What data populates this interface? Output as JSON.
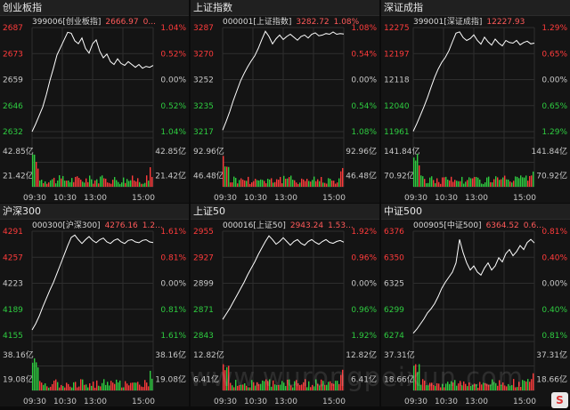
{
  "panels": [
    {
      "title": "创业板指",
      "code": "399006[创业板指]",
      "price": "2666.97",
      "chg": "0...",
      "y_left": [
        "2687",
        "2673",
        "2659",
        "2646",
        "2632"
      ],
      "y_right": [
        "1.04%",
        "0.52%",
        "0.00%",
        "0.52%",
        "1.04%"
      ],
      "vol_left": [
        "42.85亿",
        "21.42亿"
      ],
      "vol_right": [
        "42.85亿",
        "21.42亿"
      ],
      "times": [
        "09:30",
        "10:30",
        "13:00",
        "15:00"
      ],
      "price_series": [
        2632.0,
        2636.0,
        2640.5,
        2645.0,
        2651.5,
        2659.0,
        2665.5,
        2672.5,
        2676.5,
        2680.5,
        2684.5,
        2684.0,
        2680.0,
        2678.5,
        2681.5,
        2676.0,
        2673.5,
        2678.5,
        2680.5,
        2674.5,
        2671.0,
        2673.0,
        2669.0,
        2667.5,
        2670.5,
        2668.0,
        2667.0,
        2669.0,
        2667.5,
        2666.0,
        2667.5,
        2665.5,
        2666.5,
        2666.0,
        2666.97
      ],
      "price_range": [
        2632,
        2687
      ],
      "vol_max": 42.85
    },
    {
      "title": "上证指数",
      "code": "000001[上证指数]",
      "price": "3282.72",
      "chg": "1.08%",
      "y_left": [
        "3287",
        "3270",
        "3252",
        "3235",
        "3217"
      ],
      "y_right": [
        "1.08%",
        "0.54%",
        "0.00%",
        "0.54%",
        "1.08%"
      ],
      "vol_left": [
        "92.96亿",
        "46.48亿"
      ],
      "vol_right": [
        "92.96亿",
        "46.48亿"
      ],
      "times": [
        "09:30",
        "10:30",
        "13:00",
        "15:00"
      ],
      "price_series": [
        3218.0,
        3224.0,
        3230.5,
        3238.0,
        3244.5,
        3251.0,
        3256.0,
        3260.5,
        3264.5,
        3268.0,
        3273.0,
        3279.0,
        3284.5,
        3281.0,
        3276.0,
        3279.5,
        3282.0,
        3279.0,
        3281.0,
        3282.5,
        3280.5,
        3278.5,
        3281.0,
        3282.0,
        3280.0,
        3282.5,
        3283.5,
        3281.5,
        3282.0,
        3283.0,
        3282.5,
        3284.0,
        3282.5,
        3283.0,
        3282.72
      ],
      "price_range": [
        3217,
        3287
      ],
      "vol_max": 92.96
    },
    {
      "title": "深证成指",
      "code": "399001[深证成指]",
      "price": "12227.93",
      "chg": "",
      "y_left": [
        "12275",
        "12197",
        "12118",
        "12040",
        "11961"
      ],
      "y_right": [
        "1.29%",
        "0.65%",
        "0.00%",
        "0.65%",
        "1.29%"
      ],
      "vol_left": [
        "141.84亿",
        "70.92亿"
      ],
      "vol_right": [
        "141.84亿",
        "70.92亿"
      ],
      "times": [
        "09:30",
        "10:30",
        "13:00",
        "15:00"
      ],
      "price_series": [
        11962.0,
        11985.0,
        12010.0,
        12036.0,
        12064.0,
        12095.0,
        12125.0,
        12150.0,
        12170.0,
        12185.0,
        12205.0,
        12232.0,
        12258.0,
        12262.0,
        12245.0,
        12236.0,
        12242.0,
        12253.0,
        12236.0,
        12225.0,
        12246.0,
        12232.0,
        12222.0,
        12240.0,
        12228.0,
        12220.0,
        12236.0,
        12230.0,
        12228.0,
        12236.0,
        12223.0,
        12230.0,
        12234.0,
        12226.0,
        12227.93
      ],
      "price_range": [
        11961,
        12275
      ],
      "vol_max": 141.84
    },
    {
      "title": "沪深300",
      "code": "000300[沪深300]",
      "price": "4276.16",
      "chg": "1.2...",
      "y_left": [
        "4291",
        "4257",
        "4223",
        "4189",
        "4155"
      ],
      "y_right": [
        "1.61%",
        "0.81%",
        "0.00%",
        "0.81%",
        "1.61%"
      ],
      "vol_left": [
        "38.16亿",
        "19.08亿"
      ],
      "vol_right": [
        "38.16亿",
        "19.08亿"
      ],
      "times": [
        "09:30",
        "10:30",
        "13:00",
        "15:00"
      ],
      "price_series": [
        4162.0,
        4170.0,
        4180.0,
        4192.0,
        4203.0,
        4214.0,
        4224.0,
        4236.0,
        4248.0,
        4260.0,
        4272.0,
        4283.0,
        4286.0,
        4280.0,
        4275.0,
        4280.0,
        4284.0,
        4279.0,
        4276.0,
        4280.0,
        4282.0,
        4277.0,
        4275.0,
        4279.0,
        4281.0,
        4277.0,
        4275.0,
        4279.0,
        4280.0,
        4277.0,
        4276.0,
        4279.0,
        4280.0,
        4277.0,
        4276.16
      ],
      "price_range": [
        4155,
        4291
      ],
      "vol_max": 38.16
    },
    {
      "title": "上证50",
      "code": "000016[上证50]",
      "price": "2943.24",
      "chg": "1.53...",
      "y_left": [
        "2955",
        "2927",
        "2899",
        "2871",
        "2843"
      ],
      "y_right": [
        "1.92%",
        "0.96%",
        "0.00%",
        "0.96%",
        "1.92%"
      ],
      "vol_left": [
        "12.82亿",
        "6.41亿"
      ],
      "vol_right": [
        "12.82亿",
        "6.41亿"
      ],
      "times": [
        "09:30",
        "10:30",
        "13:00",
        "15:00"
      ],
      "price_series": [
        2860.0,
        2866.0,
        2872.0,
        2879.0,
        2886.0,
        2893.0,
        2900.0,
        2908.0,
        2915.0,
        2922.0,
        2930.0,
        2937.0,
        2944.0,
        2950.0,
        2946.0,
        2941.0,
        2944.0,
        2948.0,
        2944.0,
        2940.0,
        2944.0,
        2946.0,
        2942.0,
        2940.0,
        2944.0,
        2946.0,
        2943.0,
        2941.0,
        2944.0,
        2946.0,
        2943.0,
        2942.0,
        2944.0,
        2945.0,
        2943.24
      ],
      "price_range": [
        2843,
        2955
      ],
      "vol_max": 12.82
    },
    {
      "title": "中证500",
      "code": "000905[中证500]",
      "price": "6364.52",
      "chg": "0.6...",
      "y_left": [
        "6376",
        "6350",
        "6325",
        "6299",
        "6274"
      ],
      "y_right": [
        "0.81%",
        "0.40%",
        "0.00%",
        "0.40%",
        "0.81%"
      ],
      "vol_left": [
        "37.31亿",
        "18.66亿"
      ],
      "vol_right": [
        "37.31亿",
        "18.66亿"
      ],
      "times": [
        "09:30",
        "10:30",
        "13:00",
        "15:00"
      ],
      "price_series": [
        6276.0,
        6280.0,
        6285.0,
        6290.0,
        6296.0,
        6300.0,
        6305.0,
        6312.0,
        6320.0,
        6326.0,
        6331.0,
        6336.0,
        6345.0,
        6368.0,
        6355.0,
        6345.0,
        6338.0,
        6342.0,
        6336.0,
        6333.0,
        6340.0,
        6345.0,
        6338.0,
        6342.0,
        6350.0,
        6346.0,
        6354.0,
        6358.0,
        6352.0,
        6356.0,
        6362.0,
        6358.0,
        6365.0,
        6368.0,
        6364.52
      ],
      "price_range": [
        6274,
        6376
      ],
      "vol_max": 37.31
    }
  ],
  "watermark": "www.wurongpeixun.com",
  "logo_letter": "S",
  "colors": {
    "up": "#ff3b3b",
    "down": "#2ecc40",
    "grid": "#2e2e2e",
    "line": "#ffffff",
    "text_neutral": "#c8c8c8"
  }
}
